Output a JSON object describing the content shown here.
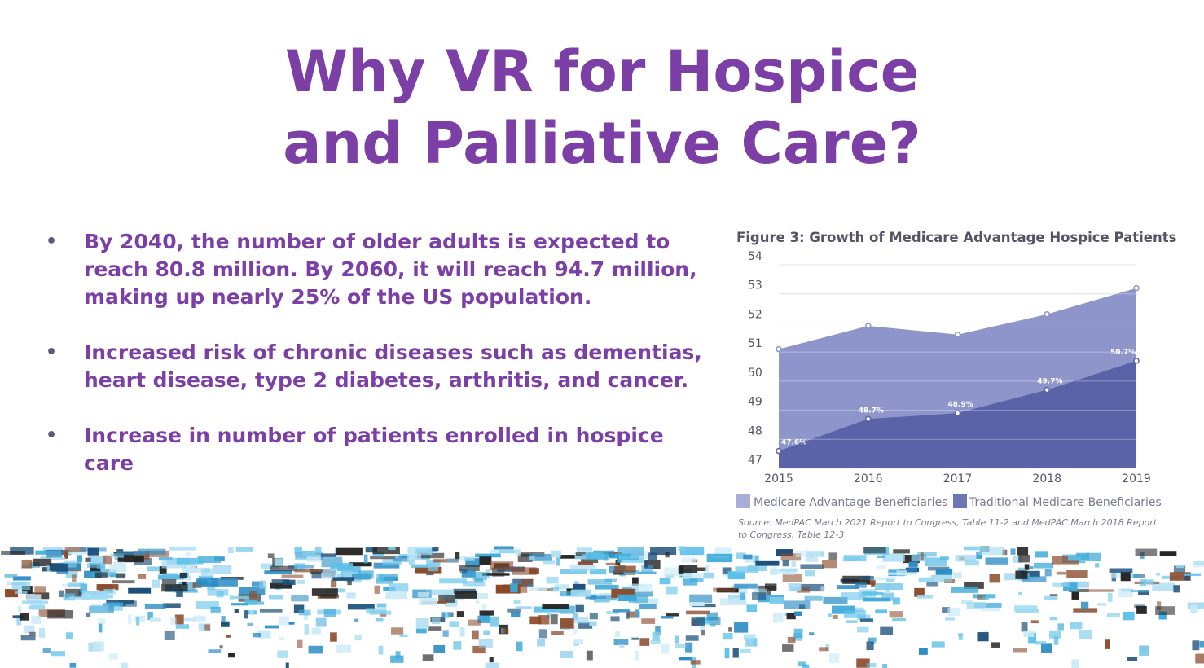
{
  "slide": {
    "title_line1": "Why VR for Hospice",
    "title_line2": "and Palliative Care?",
    "bullet_glyph": "•",
    "bullets": [
      "By 2040, the number of older adults is expected to reach 80.8 million. By 2060, it will reach 94.7 million, making up nearly 25% of the US population.",
      "Increased risk of chronic diseases such as dementias, heart disease, type 2 diabetes, arthritis, and cancer.",
      "Increase in number of patients enrolled in hospice care"
    ],
    "colors": {
      "title": "#7b3fa6",
      "mosaic_accent": "#3fa9d8"
    }
  },
  "chart_data": {
    "type": "area",
    "title": "Figure 3: Growth of Medicare Advantage Hospice Patients",
    "x": [
      "2015",
      "2016",
      "2017",
      "2018",
      "2019"
    ],
    "yticks": [
      "54",
      "53",
      "52",
      "51",
      "50",
      "49",
      "48",
      "47"
    ],
    "ylim": [
      47,
      54
    ],
    "grid": true,
    "legend_position": "bottom",
    "series": [
      {
        "name": "Medicare Advantage Beneficiaries",
        "values": [
          51.1,
          51.9,
          51.6,
          52.3,
          53.2
        ],
        "labels": [
          "51.1%",
          "51.9%",
          "51.6%",
          "52.3%",
          "53.2%"
        ],
        "color": "#8e95cb"
      },
      {
        "name": "Traditional Medicare Beneficiaries",
        "values": [
          47.6,
          48.7,
          48.9,
          49.7,
          50.7
        ],
        "labels": [
          "47.6%",
          "48.7%",
          "48.9%",
          "49.7%",
          "50.7%"
        ],
        "color": "#5a62a8"
      }
    ],
    "source": "Source: MedPAC March 2021 Report to Congress, Table 11-2 and MedPAC March 2018 Report to Congress, Table 12-3"
  }
}
